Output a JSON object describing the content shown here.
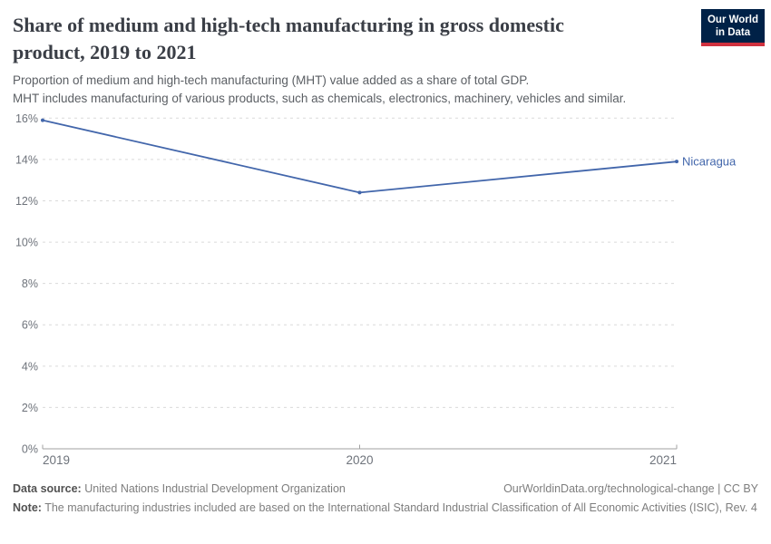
{
  "header": {
    "logo": {
      "line1": "Our World",
      "line2": "in Data",
      "bg": "#002147",
      "accent": "#d0313f"
    }
  },
  "chart_data": {
    "type": "line",
    "title": "Share of medium and high-tech manufacturing in gross domestic product, 2019 to 2021",
    "subtitle": [
      "Proportion of medium and high-tech manufacturing (MHT) value added as a share of total GDP.",
      "MHT includes manufacturing of various products, such as chemicals, electronics, machinery, vehicles and similar."
    ],
    "x": [
      "2019",
      "2020",
      "2021"
    ],
    "series": [
      {
        "name": "Nicaragua",
        "values": [
          15.9,
          12.4,
          13.9
        ],
        "color": "#4266ab"
      }
    ],
    "ylim": [
      0,
      16
    ],
    "ytick_step": 2,
    "ytick_suffix": "%",
    "grid": "horizontal-dashed",
    "legend": "series-end-label",
    "theme": {
      "grid_color": "#dadada",
      "axis_color": "#a2a2a2",
      "tick_text_color": "#6e737b"
    }
  },
  "footer": {
    "datasource_label": "Data source:",
    "datasource_value": " United Nations Industrial Development Organization",
    "link": "OurWorldinData.org/technological-change | CC BY",
    "note_label": "Note:",
    "note_value": " The manufacturing industries included are based on the International Standard Industrial Classification of All Economic Activities (ISIC), Rev. 4"
  }
}
